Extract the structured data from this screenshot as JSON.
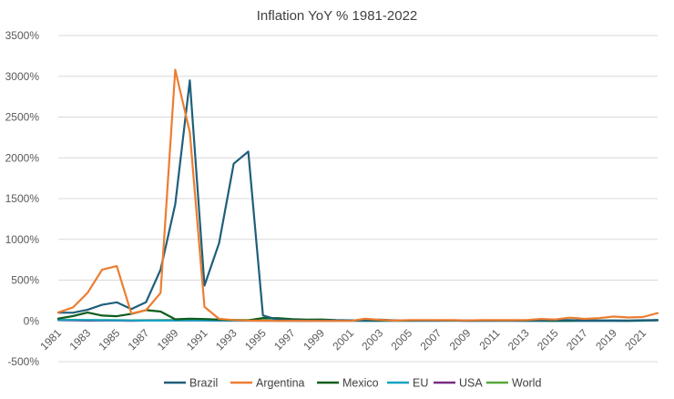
{
  "chart_data": {
    "type": "line",
    "title": "Inflation YoY % 1981-2022",
    "xlabel": "",
    "ylabel": "",
    "ylim": [
      -500,
      3500
    ],
    "y_ticks": [
      -500,
      0,
      500,
      1000,
      1500,
      2000,
      2500,
      3000,
      3500
    ],
    "y_tick_labels": [
      "-500%",
      "0%",
      "500%",
      "1000%",
      "1500%",
      "2000%",
      "2500%",
      "3000%",
      "3500%"
    ],
    "x": [
      1981,
      1982,
      1983,
      1984,
      1985,
      1986,
      1987,
      1988,
      1989,
      1990,
      1991,
      1992,
      1993,
      1994,
      1995,
      1996,
      1997,
      1998,
      1999,
      2000,
      2001,
      2002,
      2003,
      2004,
      2005,
      2006,
      2007,
      2008,
      2009,
      2010,
      2011,
      2012,
      2013,
      2014,
      2015,
      2016,
      2017,
      2018,
      2019,
      2020,
      2021,
      2022
    ],
    "x_tick_labels": [
      "1981",
      "1983",
      "1985",
      "1987",
      "1989",
      "1991",
      "1993",
      "1995",
      "1997",
      "1999",
      "2001",
      "2003",
      "2005",
      "2007",
      "2009",
      "2011",
      "2013",
      "2015",
      "2017",
      "2019",
      "2021"
    ],
    "grid": true,
    "legend_position": "bottom",
    "series": [
      {
        "name": "Brazil",
        "color": "#1f5f7a",
        "values": [
          101,
          100,
          136,
          197,
          227,
          145,
          229,
          629,
          1430,
          2950,
          433,
          952,
          1928,
          2076,
          66,
          16,
          7,
          3,
          5,
          7,
          7,
          8,
          15,
          7,
          7,
          4,
          4,
          6,
          5,
          5,
          7,
          5,
          6,
          6,
          9,
          9,
          3,
          4,
          4,
          3,
          8,
          9
        ]
      },
      {
        "name": "Argentina",
        "color": "#ed7d31",
        "values": [
          105,
          164,
          344,
          627,
          672,
          90,
          131,
          343,
          3080,
          2314,
          172,
          25,
          11,
          4,
          3,
          0,
          1,
          1,
          -1,
          -1,
          -1,
          26,
          13,
          4,
          10,
          11,
          9,
          9,
          6,
          10,
          10,
          10,
          11,
          24,
          17,
          40,
          25,
          34,
          53,
          42,
          48,
          95
        ]
      },
      {
        "name": "Mexico",
        "color": "#0e5c1c",
        "values": [
          28,
          59,
          102,
          65,
          58,
          86,
          132,
          114,
          20,
          27,
          23,
          16,
          10,
          7,
          35,
          34,
          21,
          16,
          17,
          10,
          6,
          5,
          5,
          5,
          4,
          4,
          4,
          5,
          5,
          4,
          3,
          4,
          4,
          4,
          3,
          3,
          6,
          5,
          4,
          3,
          6,
          8
        ]
      },
      {
        "name": "EU",
        "color": "#17a2c4",
        "values": [
          12,
          11,
          9,
          8,
          7,
          5,
          4,
          4,
          5,
          6,
          5,
          5,
          4,
          3,
          3,
          3,
          2,
          2,
          1,
          2,
          3,
          2,
          2,
          2,
          2,
          2,
          2,
          4,
          1,
          2,
          3,
          3,
          2,
          1,
          0,
          0,
          2,
          2,
          1,
          1,
          3,
          9
        ]
      },
      {
        "name": "USA",
        "color": "#7b2c83",
        "values": [
          10,
          6,
          3,
          4,
          4,
          2,
          4,
          4,
          5,
          5,
          4,
          3,
          3,
          3,
          3,
          3,
          2,
          2,
          2,
          3,
          3,
          2,
          2,
          3,
          3,
          3,
          3,
          4,
          0,
          2,
          3,
          2,
          1,
          2,
          0,
          1,
          2,
          2,
          2,
          1,
          5,
          8
        ]
      },
      {
        "name": "World",
        "color": "#56a83a",
        "values": [
          14,
          13,
          11,
          10,
          9,
          7,
          8,
          9,
          12,
          15,
          14,
          13,
          12,
          11,
          9,
          7,
          6,
          5,
          5,
          4,
          4,
          3,
          3,
          3,
          3,
          4,
          4,
          6,
          3,
          3,
          5,
          4,
          3,
          2,
          1,
          2,
          2,
          2,
          2,
          2,
          3,
          8
        ]
      }
    ]
  }
}
